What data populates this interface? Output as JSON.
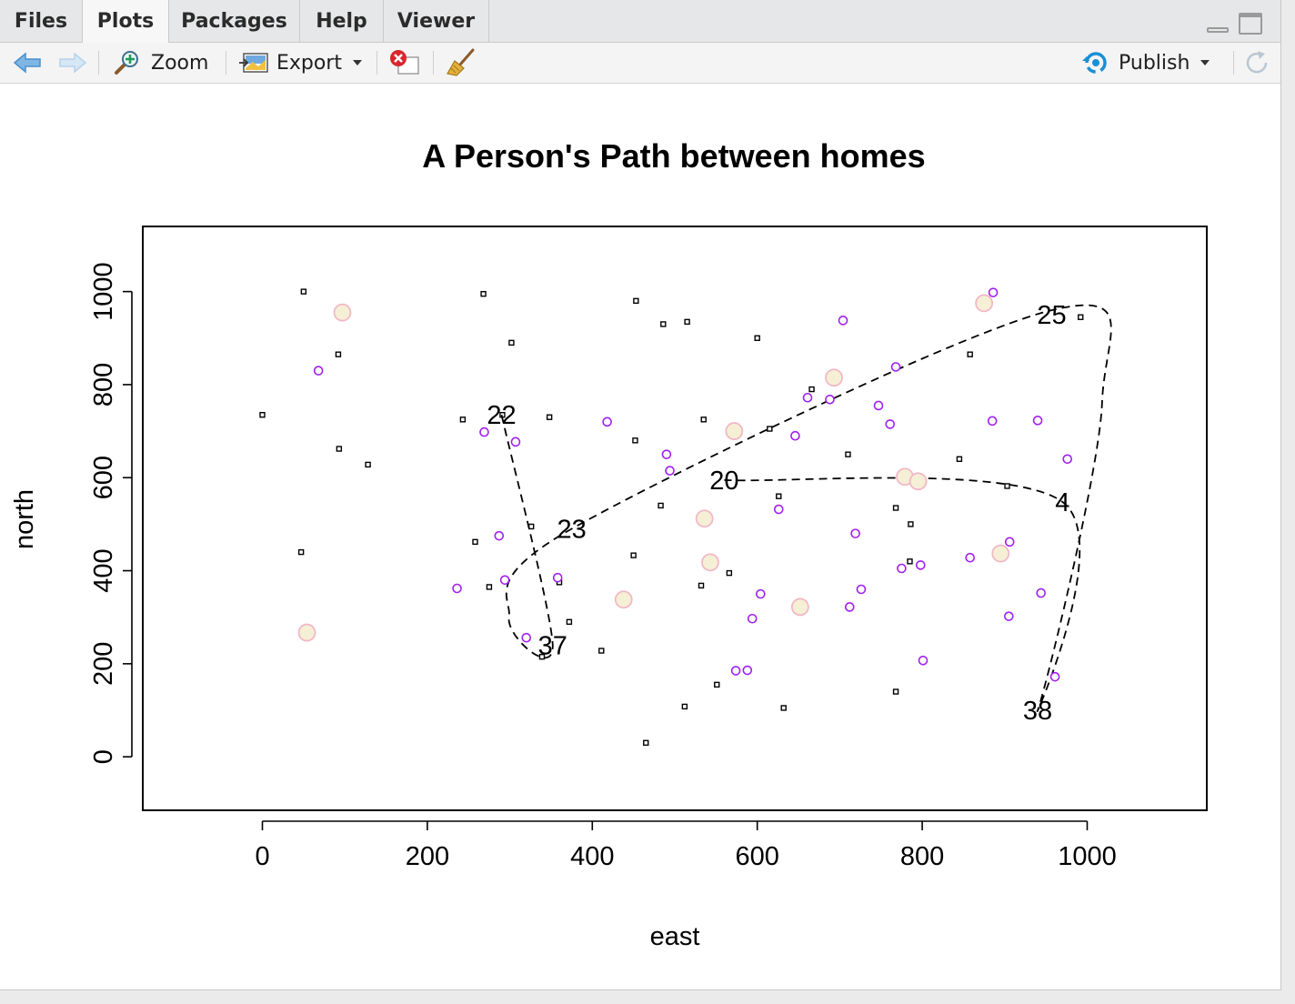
{
  "tabs": [
    {
      "label": "Files",
      "active": false
    },
    {
      "label": "Plots",
      "active": true
    },
    {
      "label": "Packages",
      "active": false
    },
    {
      "label": "Help",
      "active": false
    },
    {
      "label": "Viewer",
      "active": false
    }
  ],
  "toolbar": {
    "zoom_label": "Zoom",
    "export_label": "Export",
    "publish_label": "Publish",
    "icons": [
      "back-arrow-icon",
      "forward-arrow-icon",
      "zoom-icon",
      "export-icon",
      "remove-plot-icon",
      "broom-icon",
      "publish-icon",
      "refresh-icon"
    ]
  },
  "colors": {
    "accent_blue": "#1a8fd6",
    "point_purple": "#a020f0",
    "home_fill": "#f5efd6",
    "home_stroke": "#f2b8c6"
  },
  "chart_data": {
    "type": "scatter",
    "title": "A Person's Path between homes",
    "xlabel": "east",
    "ylabel": "north",
    "xlim": [
      -145,
      1145
    ],
    "ylim": [
      -115,
      1140
    ],
    "xticks": [
      0,
      200,
      400,
      600,
      800,
      1000
    ],
    "yticks": [
      0,
      200,
      400,
      600,
      800,
      1000
    ],
    "grid": false,
    "series": [
      {
        "marker": "small-square",
        "color": "#000000",
        "points": [
          [
            50,
            1000
          ],
          [
            268,
            995
          ],
          [
            453,
            980
          ],
          [
            486,
            930
          ],
          [
            515,
            935
          ],
          [
            302,
            890
          ],
          [
            600,
            900
          ],
          [
            92,
            865
          ],
          [
            858,
            865
          ],
          [
            992,
            945
          ],
          [
            0,
            735
          ],
          [
            243,
            725
          ],
          [
            291,
            735
          ],
          [
            348,
            730
          ],
          [
            535,
            725
          ],
          [
            452,
            680
          ],
          [
            615,
            705
          ],
          [
            666,
            790
          ],
          [
            93,
            662
          ],
          [
            128,
            628
          ],
          [
            710,
            650
          ],
          [
            845,
            640
          ],
          [
            483,
            540
          ],
          [
            626,
            560
          ],
          [
            768,
            535
          ],
          [
            903,
            582
          ],
          [
            326,
            495
          ],
          [
            258,
            462
          ],
          [
            47,
            440
          ],
          [
            450,
            433
          ],
          [
            566,
            395
          ],
          [
            360,
            375
          ],
          [
            275,
            365
          ],
          [
            532,
            368
          ],
          [
            786,
            500
          ],
          [
            785,
            420
          ],
          [
            372,
            290
          ],
          [
            411,
            228
          ],
          [
            339,
            215
          ],
          [
            551,
            155
          ],
          [
            512,
            108
          ],
          [
            632,
            105
          ],
          [
            768,
            140
          ],
          [
            465,
            30
          ]
        ]
      },
      {
        "marker": "circle",
        "color": "#a020f0",
        "points": [
          [
            68,
            830
          ],
          [
            886,
            998
          ],
          [
            704,
            938
          ],
          [
            768,
            838
          ],
          [
            661,
            772
          ],
          [
            688,
            768
          ],
          [
            747,
            755
          ],
          [
            761,
            715
          ],
          [
            885,
            722
          ],
          [
            940,
            723
          ],
          [
            269,
            698
          ],
          [
            307,
            677
          ],
          [
            418,
            720
          ],
          [
            646,
            690
          ],
          [
            490,
            650
          ],
          [
            494,
            615
          ],
          [
            976,
            640
          ],
          [
            626,
            532
          ],
          [
            287,
            475
          ],
          [
            719,
            480
          ],
          [
            906,
            462
          ],
          [
            858,
            428
          ],
          [
            775,
            405
          ],
          [
            798,
            412
          ],
          [
            236,
            362
          ],
          [
            294,
            380
          ],
          [
            358,
            385
          ],
          [
            604,
            350
          ],
          [
            726,
            360
          ],
          [
            712,
            322
          ],
          [
            944,
            352
          ],
          [
            594,
            297
          ],
          [
            905,
            302
          ],
          [
            320,
            256
          ],
          [
            574,
            185
          ],
          [
            588,
            186
          ],
          [
            801,
            207
          ],
          [
            961,
            172
          ]
        ]
      },
      {
        "marker": "large-circle",
        "color": "#f5efd6",
        "points": [
          [
            97,
            955
          ],
          [
            875,
            975
          ],
          [
            693,
            815
          ],
          [
            572,
            700
          ],
          [
            536,
            512
          ],
          [
            543,
            418
          ],
          [
            438,
            338
          ],
          [
            652,
            322
          ],
          [
            54,
            267
          ],
          [
            779,
            602
          ],
          [
            795,
            592
          ],
          [
            895,
            437
          ]
        ]
      }
    ],
    "path": {
      "style": "dashed",
      "labels": [
        {
          "text": "22",
          "x": 290,
          "y": 735
        },
        {
          "text": "37",
          "x": 352,
          "y": 240
        },
        {
          "text": "23",
          "x": 375,
          "y": 490
        },
        {
          "text": "25",
          "x": 957,
          "y": 950
        },
        {
          "text": "38",
          "x": 940,
          "y": 100
        },
        {
          "text": "4",
          "x": 970,
          "y": 548
        },
        {
          "text": "20",
          "x": 560,
          "y": 595
        }
      ],
      "points": [
        [
          290,
          735
        ],
        [
          352,
          240
        ],
        [
          299,
          300
        ],
        [
          375,
          490
        ],
        [
          957,
          960
        ],
        [
          1018,
          760
        ],
        [
          940,
          100
        ],
        [
          970,
          548
        ],
        [
          560,
          595
        ]
      ]
    }
  }
}
